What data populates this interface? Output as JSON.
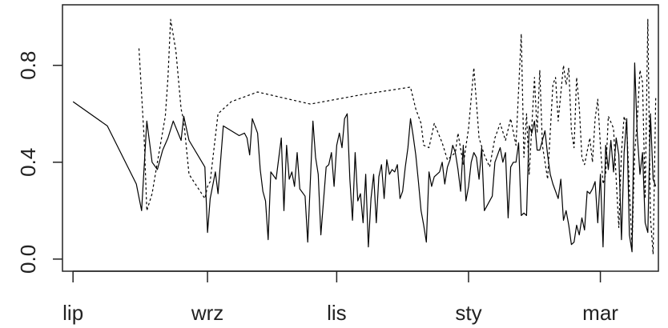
{
  "chart_data": {
    "type": "line",
    "title": "",
    "xlabel": "",
    "ylabel": "",
    "ylim": [
      0,
      1
    ],
    "xlim": [
      -4,
      222
    ],
    "x_ticks": [
      {
        "pos": 0,
        "label": "lip"
      },
      {
        "pos": 51,
        "label": "wrz"
      },
      {
        "pos": 100,
        "label": "lis"
      },
      {
        "pos": 150,
        "label": "sty"
      },
      {
        "pos": 200,
        "label": "mar"
      }
    ],
    "y_ticks": [
      {
        "pos": 0.0,
        "label": "0.0"
      },
      {
        "pos": 0.4,
        "label": "0.4"
      },
      {
        "pos": 0.8,
        "label": "0.8"
      }
    ],
    "grid": false,
    "legend": "none",
    "series": [
      {
        "style": "solid",
        "color": "#000000",
        "points": [
          [
            0,
            0.65
          ],
          [
            13,
            0.55
          ],
          [
            24,
            0.31
          ],
          [
            26,
            0.2
          ],
          [
            28,
            0.57
          ],
          [
            30,
            0.4
          ],
          [
            32,
            0.37
          ],
          [
            34,
            0.45
          ],
          [
            36,
            0.5
          ],
          [
            38,
            0.57
          ],
          [
            41,
            0.49
          ],
          [
            42,
            0.59
          ],
          [
            44,
            0.49
          ],
          [
            50,
            0.38
          ],
          [
            51,
            0.11
          ],
          [
            52,
            0.25
          ],
          [
            54,
            0.36
          ],
          [
            55,
            0.27
          ],
          [
            57,
            0.55
          ],
          [
            63,
            0.51
          ],
          [
            65,
            0.52
          ],
          [
            66,
            0.5
          ],
          [
            67,
            0.43
          ],
          [
            68,
            0.58
          ],
          [
            70,
            0.52
          ],
          [
            71,
            0.37
          ],
          [
            72,
            0.28
          ],
          [
            73,
            0.24
          ],
          [
            74,
            0.08
          ],
          [
            75,
            0.36
          ],
          [
            77,
            0.33
          ],
          [
            79,
            0.5
          ],
          [
            80,
            0.2
          ],
          [
            81,
            0.47
          ],
          [
            82,
            0.33
          ],
          [
            83,
            0.36
          ],
          [
            84,
            0.3
          ],
          [
            85,
            0.44
          ],
          [
            86,
            0.29
          ],
          [
            88,
            0.26
          ],
          [
            89,
            0.07
          ],
          [
            91,
            0.57
          ],
          [
            92,
            0.42
          ],
          [
            93,
            0.35
          ],
          [
            94,
            0.1
          ],
          [
            96,
            0.38
          ],
          [
            97,
            0.39
          ],
          [
            98,
            0.44
          ],
          [
            99,
            0.3
          ],
          [
            100,
            0.47
          ],
          [
            101,
            0.52
          ],
          [
            102,
            0.46
          ],
          [
            103,
            0.58
          ],
          [
            104,
            0.6
          ],
          [
            105,
            0.33
          ],
          [
            106,
            0.16
          ],
          [
            107,
            0.44
          ],
          [
            108,
            0.24
          ],
          [
            109,
            0.27
          ],
          [
            110,
            0.15
          ],
          [
            111,
            0.35
          ],
          [
            112,
            0.05
          ],
          [
            113,
            0.25
          ],
          [
            114,
            0.35
          ],
          [
            115,
            0.15
          ],
          [
            116,
            0.34
          ],
          [
            117,
            0.39
          ],
          [
            118,
            0.25
          ],
          [
            119,
            0.41
          ],
          [
            120,
            0.35
          ],
          [
            121,
            0.37
          ],
          [
            122,
            0.36
          ],
          [
            123,
            0.39
          ],
          [
            124,
            0.25
          ],
          [
            125,
            0.28
          ],
          [
            126,
            0.38
          ],
          [
            127,
            0.46
          ],
          [
            128,
            0.58
          ],
          [
            129,
            0.51
          ],
          [
            130,
            0.43
          ],
          [
            131,
            0.32
          ],
          [
            132,
            0.2
          ],
          [
            133,
            0.14
          ],
          [
            134,
            0.07
          ],
          [
            135,
            0.36
          ],
          [
            136,
            0.3
          ],
          [
            137,
            0.34
          ],
          [
            138,
            0.35
          ],
          [
            139,
            0.36
          ],
          [
            140,
            0.4
          ],
          [
            141,
            0.31
          ],
          [
            142,
            0.38
          ],
          [
            143,
            0.41
          ],
          [
            144,
            0.47
          ],
          [
            145,
            0.44
          ],
          [
            146,
            0.37
          ],
          [
            147,
            0.28
          ],
          [
            148,
            0.47
          ],
          [
            149,
            0.24
          ],
          [
            150,
            0.3
          ],
          [
            151,
            0.4
          ],
          [
            152,
            0.44
          ],
          [
            153,
            0.42
          ],
          [
            154,
            0.33
          ],
          [
            155,
            0.46
          ],
          [
            156,
            0.2
          ],
          [
            157,
            0.22
          ],
          [
            158,
            0.24
          ],
          [
            159,
            0.26
          ],
          [
            160,
            0.4
          ],
          [
            161,
            0.43
          ],
          [
            162,
            0.46
          ],
          [
            163,
            0.4
          ],
          [
            164,
            0.44
          ],
          [
            165,
            0.17
          ],
          [
            166,
            0.38
          ],
          [
            167,
            0.4
          ],
          [
            168,
            0.4
          ],
          [
            169,
            0.48
          ],
          [
            170,
            0.18
          ],
          [
            171,
            0.19
          ],
          [
            172,
            0.18
          ],
          [
            173,
            0.55
          ],
          [
            174,
            0.52
          ],
          [
            175,
            0.57
          ],
          [
            176,
            0.45
          ],
          [
            177,
            0.45
          ],
          [
            178,
            0.49
          ],
          [
            179,
            0.53
          ],
          [
            180,
            0.43
          ],
          [
            181,
            0.35
          ],
          [
            182,
            0.31
          ],
          [
            183,
            0.28
          ],
          [
            184,
            0.25
          ],
          [
            185,
            0.33
          ],
          [
            186,
            0.16
          ],
          [
            187,
            0.2
          ],
          [
            188,
            0.14
          ],
          [
            189,
            0.06
          ],
          [
            190,
            0.07
          ],
          [
            191,
            0.14
          ],
          [
            192,
            0.1
          ],
          [
            193,
            0.17
          ],
          [
            194,
            0.12
          ],
          [
            195,
            0.28
          ],
          [
            196,
            0.27
          ],
          [
            197,
            0.29
          ],
          [
            198,
            0.32
          ],
          [
            199,
            0.15
          ],
          [
            200,
            0.35
          ],
          [
            201,
            0.05
          ],
          [
            202,
            0.47
          ],
          [
            203,
            0.37
          ],
          [
            204,
            0.49
          ],
          [
            205,
            0.36
          ],
          [
            206,
            0.5
          ],
          [
            207,
            0.43
          ],
          [
            208,
            0.08
          ],
          [
            209,
            0.44
          ],
          [
            210,
            0.58
          ],
          [
            211,
            0.1
          ],
          [
            212,
            0.03
          ],
          [
            213,
            0.81
          ],
          [
            214,
            0.51
          ],
          [
            215,
            0.35
          ],
          [
            216,
            0.44
          ],
          [
            217,
            0.15
          ],
          [
            218,
            0.11
          ],
          [
            219,
            0.6
          ],
          [
            220,
            0.33
          ],
          [
            221,
            0.3
          ]
        ]
      },
      {
        "style": "dashed",
        "color": "#000000",
        "points": [
          [
            25,
            0.87
          ],
          [
            27,
            0.49
          ],
          [
            28,
            0.2
          ],
          [
            30,
            0.27
          ],
          [
            32,
            0.4
          ],
          [
            35,
            0.59
          ],
          [
            36,
            0.75
          ],
          [
            37,
            0.99
          ],
          [
            39,
            0.86
          ],
          [
            41,
            0.62
          ],
          [
            42,
            0.57
          ],
          [
            44,
            0.35
          ],
          [
            50,
            0.25
          ],
          [
            51,
            0.3
          ],
          [
            52,
            0.32
          ],
          [
            55,
            0.6
          ],
          [
            60,
            0.65
          ],
          [
            70,
            0.69
          ],
          [
            90,
            0.64
          ],
          [
            110,
            0.68
          ],
          [
            128,
            0.71
          ],
          [
            130,
            0.62
          ],
          [
            132,
            0.56
          ],
          [
            133,
            0.47
          ],
          [
            135,
            0.46
          ],
          [
            137,
            0.56
          ],
          [
            140,
            0.48
          ],
          [
            142,
            0.41
          ],
          [
            145,
            0.44
          ],
          [
            146,
            0.52
          ],
          [
            148,
            0.39
          ],
          [
            150,
            0.54
          ],
          [
            152,
            0.79
          ],
          [
            154,
            0.5
          ],
          [
            156,
            0.43
          ],
          [
            158,
            0.38
          ],
          [
            160,
            0.5
          ],
          [
            162,
            0.56
          ],
          [
            164,
            0.49
          ],
          [
            166,
            0.58
          ],
          [
            168,
            0.47
          ],
          [
            170,
            0.93
          ],
          [
            171,
            0.42
          ],
          [
            172,
            0.6
          ],
          [
            173,
            0.35
          ],
          [
            175,
            0.75
          ],
          [
            176,
            0.52
          ],
          [
            177,
            0.78
          ],
          [
            178,
            0.47
          ],
          [
            180,
            0.33
          ],
          [
            182,
            0.72
          ],
          [
            183,
            0.75
          ],
          [
            184,
            0.57
          ],
          [
            186,
            0.8
          ],
          [
            187,
            0.72
          ],
          [
            188,
            0.79
          ],
          [
            189,
            0.53
          ],
          [
            190,
            0.46
          ],
          [
            191,
            0.75
          ],
          [
            192,
            0.63
          ],
          [
            193,
            0.42
          ],
          [
            194,
            0.39
          ],
          [
            196,
            0.5
          ],
          [
            197,
            0.4
          ],
          [
            198,
            0.58
          ],
          [
            199,
            0.66
          ],
          [
            200,
            0.47
          ],
          [
            201,
            0.31
          ],
          [
            202,
            0.35
          ],
          [
            203,
            0.59
          ],
          [
            205,
            0.54
          ],
          [
            206,
            0.33
          ],
          [
            207,
            0.13
          ],
          [
            208,
            0.44
          ],
          [
            209,
            0.59
          ],
          [
            210,
            0.55
          ],
          [
            211,
            0.29
          ],
          [
            212,
            0.05
          ],
          [
            213,
            0.44
          ],
          [
            214,
            0.58
          ],
          [
            215,
            0.78
          ],
          [
            216,
            0.73
          ],
          [
            217,
            0.25
          ],
          [
            218,
            0.99
          ],
          [
            219,
            0.17
          ],
          [
            220,
            0.02
          ],
          [
            221,
            0.67
          ]
        ]
      }
    ]
  }
}
